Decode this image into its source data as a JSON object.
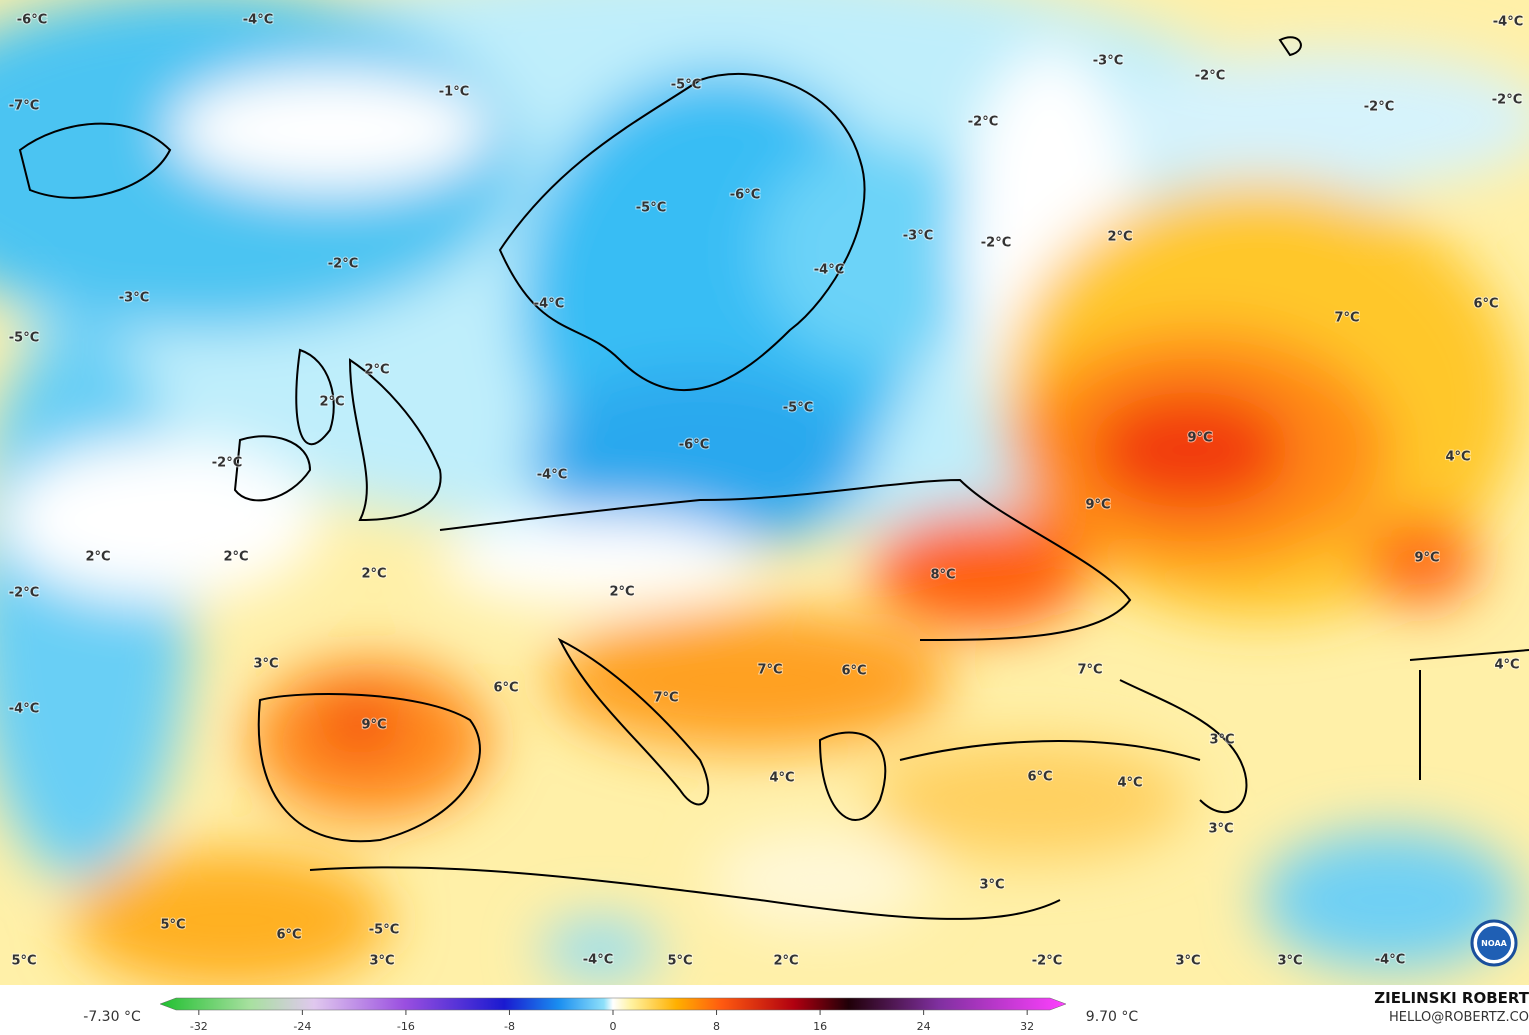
{
  "map": {
    "labels": [
      "-6°C",
      "-4°C",
      "-5°C",
      "-3°C",
      "-2°C",
      "-4°C",
      "-2°C",
      "-2°C",
      "-7°C",
      "-1°C",
      "-2°C",
      "-6°C",
      "-5°C",
      "-3°C",
      "-2°C",
      "2°C",
      "-4°C",
      "-2°C",
      "-3°C",
      "-4°C",
      "-5°C",
      "6°C",
      "7°C",
      "2°C",
      "2°C",
      "-5°C",
      "9°C",
      "-6°C",
      "4°C",
      "-2°C",
      "-4°C",
      "9°C",
      "2°C",
      "2°C",
      "9°C",
      "2°C",
      "8°C",
      "-2°C",
      "2°C",
      "3°C",
      "7°C",
      "6°C",
      "7°C",
      "4°C",
      "6°C",
      "7°C",
      "-4°C",
      "9°C",
      "3°C",
      "6°C",
      "4°C",
      "4°C",
      "3°C",
      "3°C",
      "5°C",
      "6°C",
      "-5°C",
      "5°C",
      "3°C",
      "-4°C",
      "5°C",
      "2°C",
      "-2°C",
      "3°C",
      "3°C",
      "-4°C"
    ]
  },
  "colorbar": {
    "min_label": "-7.30 °C",
    "max_label": "9.70 °C",
    "range": [
      -35,
      35
    ],
    "ticks": [
      -32,
      -24,
      -16,
      -8,
      0,
      8,
      16,
      24,
      32
    ]
  },
  "credit": {
    "name": "ZIELINSKI ROBERT",
    "email": "HELLO@ROBERTZ.CO"
  },
  "logo": "NOAA"
}
